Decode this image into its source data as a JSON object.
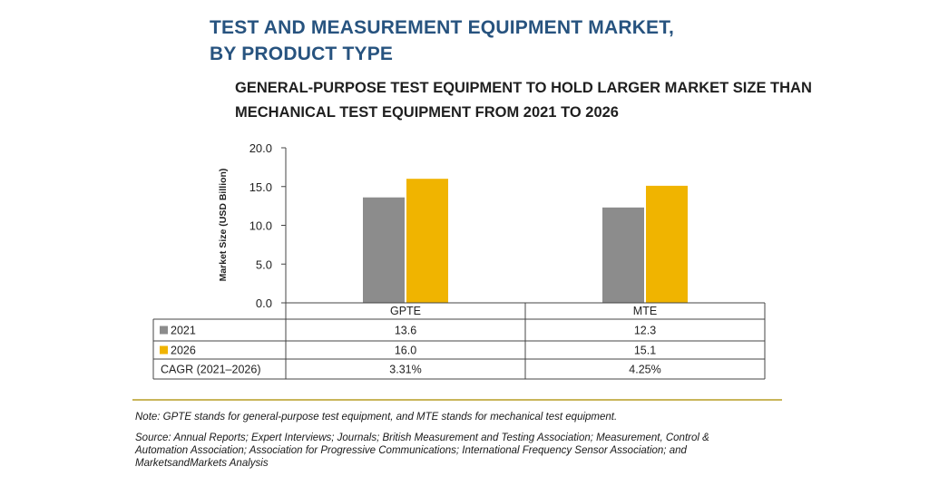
{
  "title": {
    "line1": "TEST AND MEASUREMENT EQUIPMENT MARKET,",
    "line2": "BY PRODUCT TYPE"
  },
  "subtitle": {
    "line1": "GENERAL-PURPOSE TEST EQUIPMENT TO HOLD LARGER MARKET SIZE THAN",
    "line2": "MECHANICAL TEST EQUIPMENT FROM 2021 TO 2026"
  },
  "chart_data": {
    "type": "bar",
    "categories": [
      "GPTE",
      "MTE"
    ],
    "series": [
      {
        "name": "2021",
        "values": [
          13.6,
          12.3
        ],
        "color": "#8c8c8c"
      },
      {
        "name": "2026",
        "values": [
          16.0,
          15.1
        ],
        "color": "#f0b400"
      }
    ],
    "ylabel": "Market Size (USD Billion)",
    "ylim": [
      0,
      20
    ],
    "yticks": [
      "0.0",
      "5.0",
      "10.0",
      "15.0",
      "20.0"
    ],
    "table": {
      "rows": [
        {
          "label": "2021",
          "values": [
            "13.6",
            "12.3"
          ]
        },
        {
          "label": "2026",
          "values": [
            "16.0",
            "15.1"
          ]
        },
        {
          "label": "CAGR (2021–2026)",
          "values": [
            "3.31%",
            "4.25%"
          ]
        }
      ]
    },
    "grid": false,
    "legend": "in table"
  },
  "note": "Note: GPTE stands for general-purpose test equipment, and MTE stands for mechanical test equipment.",
  "source": "Source: Annual Reports; Expert Interviews; Journals; British Measurement and Testing Association; Measurement, Control & Automation Association; Association for Progressive Communications; International Frequency Sensor Association; and MarketsandMarkets Analysis"
}
